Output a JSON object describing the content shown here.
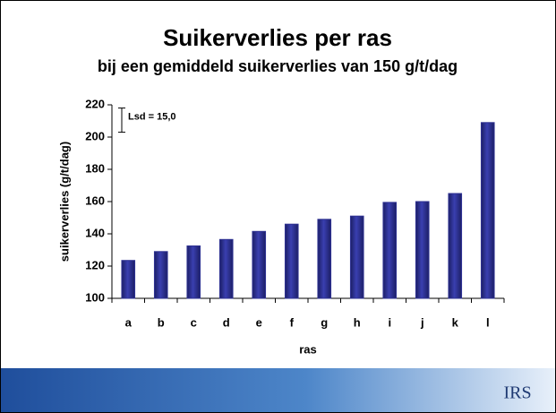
{
  "chart_data": {
    "type": "bar",
    "title": "Suikerverlies per ras",
    "subtitle": "bij een gemiddeld suikerverlies van 150 g/t/dag",
    "x_label": "ras",
    "y_label": "suikerverlies (g/t/dag)",
    "categories": [
      "a",
      "b",
      "c",
      "d",
      "e",
      "f",
      "g",
      "h",
      "i",
      "j",
      "k",
      "l"
    ],
    "values": [
      123.5,
      129,
      132.5,
      136.5,
      141.5,
      146,
      149,
      151,
      159.5,
      160,
      165,
      209
    ],
    "color": "#2e3192",
    "ylim": [
      100,
      220
    ],
    "yticks": [
      100,
      120,
      140,
      160,
      180,
      200,
      220
    ],
    "lsd": {
      "value": 15,
      "label": "Lsd = 15,0"
    }
  },
  "logo": "IRS"
}
